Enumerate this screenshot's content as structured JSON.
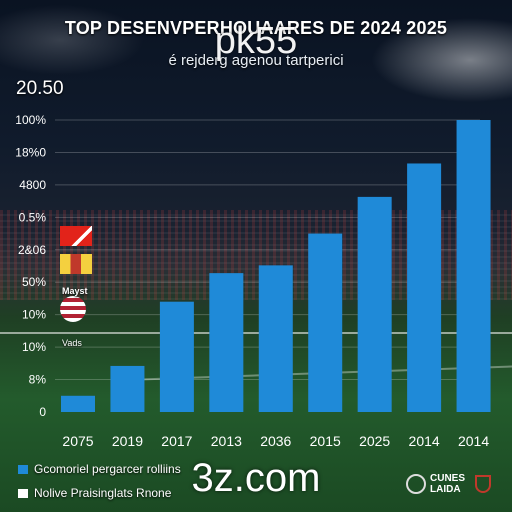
{
  "header": {
    "title": "TOP DESENVPERHOUAARES DE 2024 2025",
    "subtitle": "é rejderg agenou tartperici",
    "top_value": "20.50"
  },
  "watermarks": {
    "top": "pk55",
    "bottom": "3z.com"
  },
  "flags": {
    "label_1": "Mayst",
    "label_2": "Vads"
  },
  "legend": {
    "items": [
      {
        "label": "Gcomoriel pergarcer rolliins",
        "color": "#1f8ad8"
      },
      {
        "label": "Nolive Praisinglats Rnone",
        "color": "#ffffff"
      }
    ]
  },
  "logo": {
    "text_line1": "CUNES",
    "text_line2": "LAIDA"
  },
  "chart_data": {
    "type": "bar",
    "title": "TOP DESENVPERHOUAARES DE 2024 2025",
    "subtitle": "é rejderg agenou tartperici",
    "categories": [
      "2075",
      "2019",
      "2017",
      "2013",
      "2036",
      "2015",
      "2025",
      "2014",
      "2014"
    ],
    "series": [
      {
        "name": "Gcomoriel pergarcer rolliins",
        "color": "#1f8ad8",
        "values": [
          0.5,
          1.42,
          3.4,
          4.28,
          4.52,
          5.5,
          6.63,
          7.66,
          9.0
        ]
      }
    ],
    "y_tick_labels": [
      "0",
      "8%",
      "10%",
      "10%",
      "50%",
      "2&06",
      "0.5%",
      "4800",
      "18%0",
      "100%"
    ],
    "ylim": [
      0,
      9
    ],
    "grid": true,
    "legend_position": "bottom-left"
  }
}
